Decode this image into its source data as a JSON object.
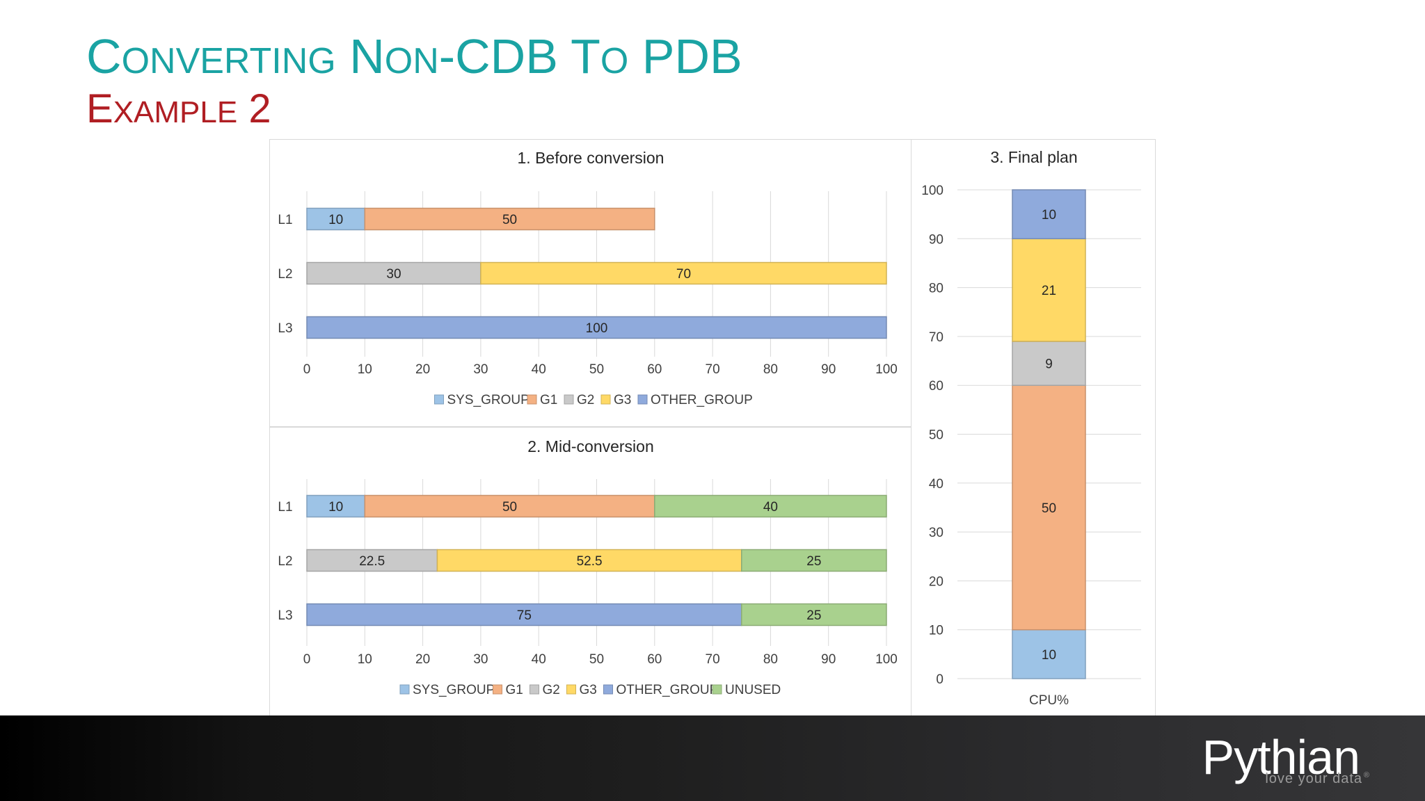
{
  "slide": {
    "title": "Converting non-CDB to PDB",
    "subtitle": "Example 2"
  },
  "legend_items": {
    "sys_group": "SYS_GROUP",
    "g1": "G1",
    "g2": "G2",
    "g3": "G3",
    "other_group": "OTHER_GROUP",
    "unused": "UNUSED"
  },
  "colors": {
    "SYS_GROUP": "#9dc3e6",
    "G1": "#f4b183",
    "G2": "#c9c9c9",
    "G3": "#ffd966",
    "OTHER_GROUP": "#8faadc",
    "UNUSED": "#a9d18e"
  },
  "chart_data": [
    {
      "type": "bar",
      "orientation": "horizontal",
      "stacked": true,
      "title": "1. Before conversion",
      "categories": [
        "L1",
        "L2",
        "L3"
      ],
      "series": [
        {
          "name": "SYS_GROUP",
          "values": [
            10,
            0,
            0
          ]
        },
        {
          "name": "G1",
          "values": [
            50,
            0,
            0
          ]
        },
        {
          "name": "G2",
          "values": [
            0,
            30,
            0
          ]
        },
        {
          "name": "G3",
          "values": [
            0,
            70,
            0
          ]
        },
        {
          "name": "OTHER_GROUP",
          "values": [
            0,
            0,
            100
          ]
        }
      ],
      "xlim": [
        0,
        100
      ],
      "ticks": [
        0,
        10,
        20,
        30,
        40,
        50,
        60,
        70,
        80,
        90,
        100
      ],
      "grid": true,
      "legend": "bottom"
    },
    {
      "type": "bar",
      "orientation": "horizontal",
      "stacked": true,
      "title": "2. Mid-conversion",
      "categories": [
        "L1",
        "L2",
        "L3"
      ],
      "series": [
        {
          "name": "SYS_GROUP",
          "values": [
            10,
            0,
            0
          ]
        },
        {
          "name": "G1",
          "values": [
            50,
            0,
            0
          ]
        },
        {
          "name": "G2",
          "values": [
            0,
            22.5,
            0
          ]
        },
        {
          "name": "G3",
          "values": [
            0,
            52.5,
            0
          ]
        },
        {
          "name": "OTHER_GROUP",
          "values": [
            0,
            0,
            75
          ]
        },
        {
          "name": "UNUSED",
          "values": [
            40,
            25,
            25
          ]
        }
      ],
      "xlim": [
        0,
        100
      ],
      "ticks": [
        0,
        10,
        20,
        30,
        40,
        50,
        60,
        70,
        80,
        90,
        100
      ],
      "grid": true,
      "legend": "bottom"
    },
    {
      "type": "bar",
      "orientation": "vertical",
      "stacked": true,
      "title": "3. Final plan",
      "categories": [
        "CPU%"
      ],
      "series": [
        {
          "name": "SYS_GROUP",
          "values": [
            10
          ]
        },
        {
          "name": "G1",
          "values": [
            50
          ]
        },
        {
          "name": "G2",
          "values": [
            9
          ]
        },
        {
          "name": "G3",
          "values": [
            21
          ]
        },
        {
          "name": "OTHER_GROUP",
          "values": [
            10
          ]
        }
      ],
      "ylim": [
        0,
        100
      ],
      "ticks": [
        0,
        10,
        20,
        30,
        40,
        50,
        60,
        70,
        80,
        90,
        100
      ],
      "grid": true,
      "legend": "none"
    }
  ],
  "brand": {
    "name": "Pythian",
    "tagline": "love your data",
    "mark": "®"
  }
}
